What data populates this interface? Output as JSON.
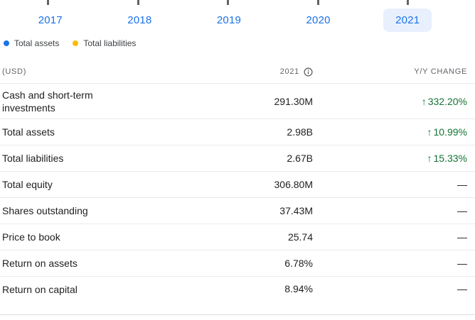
{
  "colors": {
    "link_blue": "#1a73e8",
    "selected_tab_bg": "#e8f0fe",
    "positive_green": "#137333",
    "header_gray": "#5f6368",
    "text_dark": "#202124",
    "legend_assets": "#1a73e8",
    "legend_liabilities": "#fbbc04"
  },
  "year_tabs": [
    {
      "label": "2017",
      "selected": false
    },
    {
      "label": "2018",
      "selected": false
    },
    {
      "label": "2019",
      "selected": false
    },
    {
      "label": "2020",
      "selected": false
    },
    {
      "label": "2021",
      "selected": true
    }
  ],
  "legend": [
    {
      "label": "Total assets",
      "color": "#1a73e8"
    },
    {
      "label": "Total liabilities",
      "color": "#fbbc04"
    }
  ],
  "table": {
    "header": {
      "currency_label": "(USD)",
      "period_label": "2021",
      "info_icon": "info-icon",
      "change_label": "Y/Y CHANGE"
    },
    "up_arrow_glyph": "↑",
    "no_change_glyph": "—",
    "rows": [
      {
        "label": "Cash and short-term investments",
        "value": "291.30M",
        "change": "332.20%",
        "direction": "up"
      },
      {
        "label": "Total assets",
        "value": "2.98B",
        "change": "10.99%",
        "direction": "up"
      },
      {
        "label": "Total liabilities",
        "value": "2.67B",
        "change": "15.33%",
        "direction": "up"
      },
      {
        "label": "Total equity",
        "value": "306.80M",
        "change": "—",
        "direction": "flat"
      },
      {
        "label": "Shares outstanding",
        "value": "37.43M",
        "change": "—",
        "direction": "flat"
      },
      {
        "label": "Price to book",
        "value": "25.74",
        "change": "—",
        "direction": "flat"
      },
      {
        "label": "Return on assets",
        "value": "6.78%",
        "change": "—",
        "direction": "flat"
      },
      {
        "label": "Return on capital",
        "value": "8.94%",
        "change": "—",
        "direction": "flat"
      }
    ]
  }
}
